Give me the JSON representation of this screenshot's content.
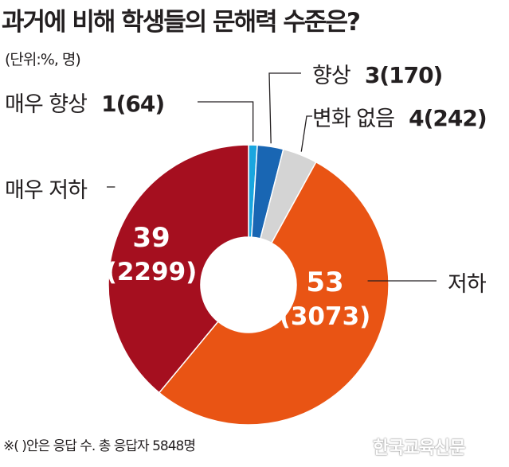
{
  "chart_data": {
    "type": "pie",
    "title": "과거에 비해 학생들의 문해력 수준은?",
    "unit_label": "(단위:%, 명)",
    "slices": [
      {
        "label": "매우 향상",
        "value": 1,
        "count": 64,
        "color": "#19a6df"
      },
      {
        "label": "향상",
        "value": 3,
        "count": 170,
        "color": "#1966b3"
      },
      {
        "label": "변화 없음",
        "value": 4,
        "count": 242,
        "color": "#d4d4d4"
      },
      {
        "label": "저하",
        "value": 53,
        "count": 3073,
        "color": "#e95414"
      },
      {
        "label": "매우 저하",
        "value": 39,
        "count": 2299,
        "color": "#a50f1f"
      }
    ],
    "note": "※(  )안은 응답 수. 총 응답자 5848명"
  },
  "watermark": "한국교육신문"
}
